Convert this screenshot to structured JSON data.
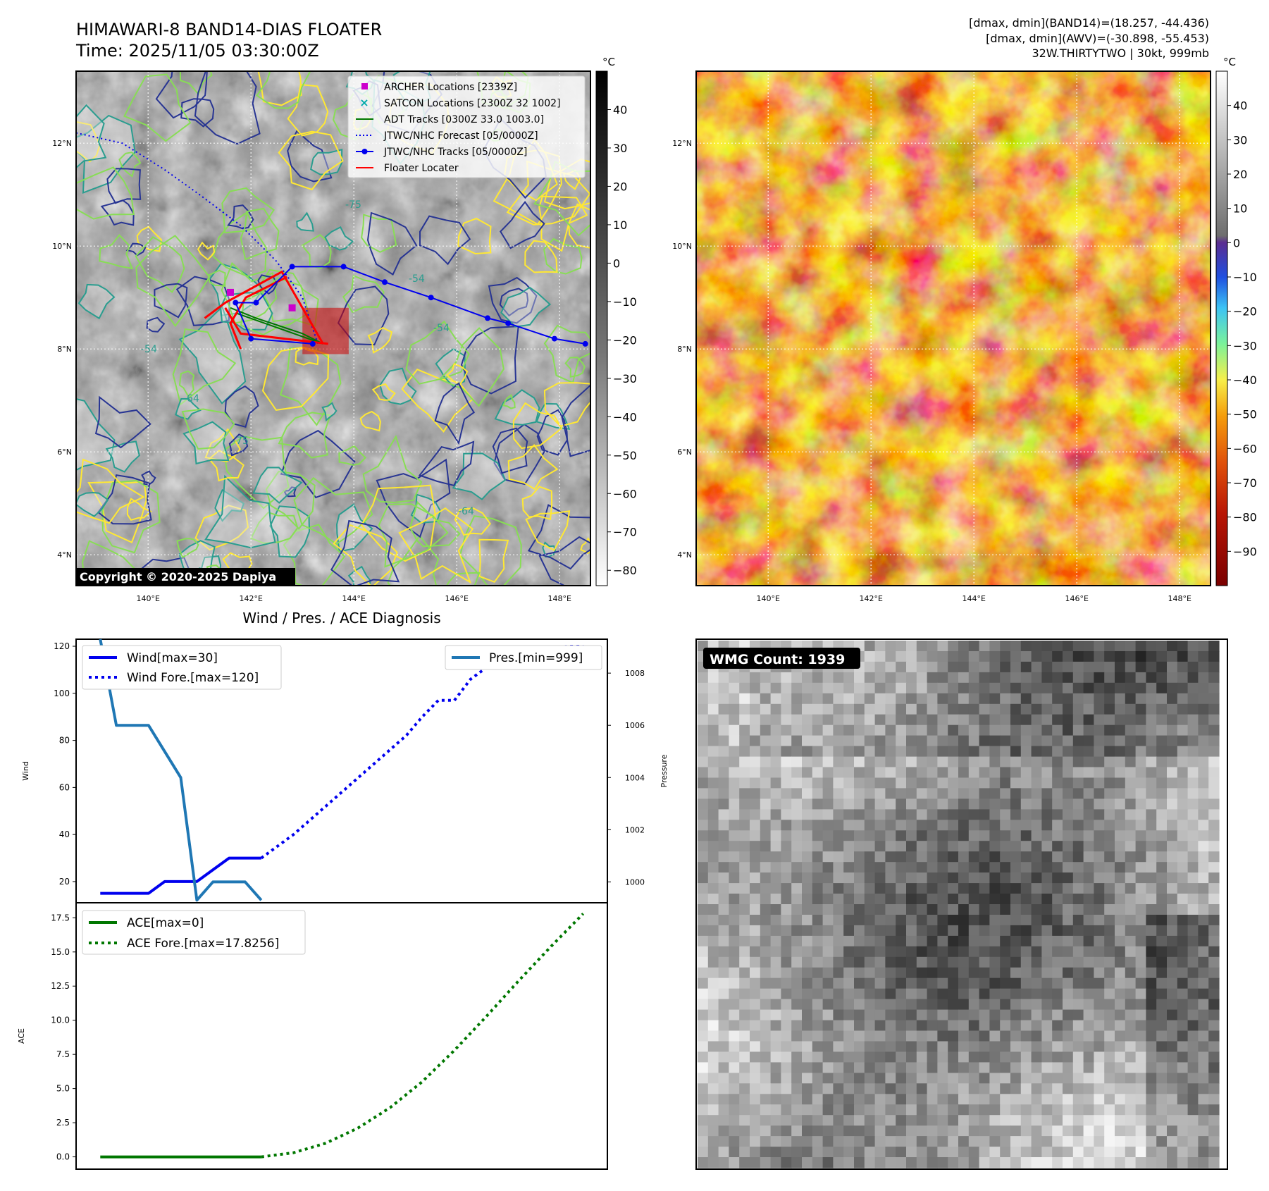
{
  "header": {
    "title": "HIMAWARI-8 BAND14-DIAS FLOATER",
    "time": "Time: 2025/11/05 03:30:00Z",
    "stats_band14": "[dmax, dmin](BAND14)=(18.257, -44.436)",
    "stats_awv": "[dmax, dmin](AWV)=(-30.898, -55.453)",
    "storm": "32W.THIRTYTWO | 30kt, 999mb"
  },
  "map": {
    "lat_labels": [
      "12°N",
      "10°N",
      "8°N",
      "6°N",
      "4°N"
    ],
    "lat_values": [
      12,
      10,
      8,
      6,
      4
    ],
    "lon_labels": [
      "140°E",
      "142°E",
      "144°E",
      "146°E",
      "148°E"
    ],
    "lon_values": [
      140,
      142,
      144,
      146,
      148
    ],
    "lon_range": [
      138.6,
      148.6
    ],
    "lat_range": [
      3.4,
      13.4
    ],
    "copyright": "Copyright © 2020-2025 Dapiya",
    "contour_labels": [
      "-54",
      "-64",
      "-75"
    ],
    "colors": {
      "archer": "#cc00cc",
      "satcon": "#00aaaa",
      "adt": "#007700",
      "jtwc": "#0000ee",
      "floater": "#ff0000",
      "contour_yellow": "#ffe833",
      "contour_lightgreen": "#88dd55",
      "contour_teal": "#2a9d8f",
      "contour_navy": "#283593"
    },
    "legend": [
      {
        "label": "ARCHER Locations [2339Z]",
        "marker": "square",
        "color": "#cc00cc"
      },
      {
        "label": "SATCON Locations [2300Z 32 1002]",
        "marker": "x",
        "color": "#00aaaa"
      },
      {
        "label": "ADT Tracks [0300Z 33.0 1003.0]",
        "marker": "line",
        "color": "#007700"
      },
      {
        "label": "JTWC/NHC Forecast [05/0000Z]",
        "marker": "dotted",
        "color": "#0000ee"
      },
      {
        "label": "JTWC/NHC Tracks [05/0000Z]",
        "marker": "line-dot",
        "color": "#0000ee"
      },
      {
        "label": "Floater Locater",
        "marker": "line",
        "color": "#ff0000"
      }
    ],
    "jtwc_track": [
      [
        148.5,
        8.1
      ],
      [
        147.9,
        8.2
      ],
      [
        147.0,
        8.5
      ],
      [
        146.6,
        8.6
      ],
      [
        145.5,
        9.0
      ],
      [
        144.6,
        9.3
      ],
      [
        143.8,
        9.6
      ],
      [
        142.8,
        9.6
      ],
      [
        142.1,
        8.9
      ],
      [
        141.7,
        8.9
      ],
      [
        142.0,
        8.2
      ],
      [
        143.2,
        8.1
      ]
    ],
    "jtwc_forecast": [
      [
        138.6,
        12.2
      ],
      [
        139.5,
        12.0
      ],
      [
        140.3,
        11.5
      ],
      [
        141.0,
        11.0
      ],
      [
        141.8,
        10.4
      ],
      [
        142.5,
        9.7
      ],
      [
        143.0,
        9.0
      ],
      [
        143.3,
        8.1
      ]
    ],
    "adt_track": [
      [
        141.6,
        8.8
      ],
      [
        142.1,
        8.6
      ],
      [
        143.0,
        8.3
      ],
      [
        143.4,
        8.1
      ],
      [
        141.7,
        8.7
      ]
    ],
    "archer_points": [
      [
        141.6,
        9.1
      ],
      [
        142.8,
        8.8
      ]
    ],
    "floater_box": [
      143.0,
      7.9,
      143.9,
      8.8
    ],
    "floater_tracks": [
      [
        [
          143.4,
          8.1
        ],
        [
          142.6,
          9.5
        ],
        [
          141.5,
          8.9
        ],
        [
          141.1,
          8.6
        ]
      ],
      [
        [
          143.5,
          8.1
        ],
        [
          141.8,
          8.3
        ],
        [
          141.5,
          8.8
        ]
      ],
      [
        [
          141.8,
          8.0
        ],
        [
          141.6,
          8.5
        ],
        [
          141.9,
          9.0
        ],
        [
          142.7,
          9.4
        ]
      ]
    ],
    "colorbar": {
      "unit": "°C",
      "ticks": [
        "40",
        "30",
        "20",
        "10",
        "0",
        "−10",
        "−20",
        "−30",
        "−40",
        "−50",
        "−60",
        "−70",
        "−80"
      ],
      "values": [
        40,
        30,
        20,
        10,
        0,
        -10,
        -20,
        -30,
        -40,
        -50,
        -60,
        -70,
        -80
      ],
      "range": [
        -84,
        50
      ]
    }
  },
  "awv": {
    "colorbar": {
      "unit": "°C",
      "ticks": [
        "40",
        "30",
        "20",
        "10",
        "0",
        "−10",
        "−20",
        "−30",
        "−40",
        "−50",
        "−60",
        "−70",
        "−80",
        "−90"
      ],
      "values": [
        40,
        30,
        20,
        10,
        0,
        -10,
        -20,
        -30,
        -40,
        -50,
        -60,
        -70,
        -80,
        -90
      ],
      "range": [
        -100,
        50
      ]
    }
  },
  "wmg": {
    "label": "WMG Count: 1939"
  },
  "chart_data": [
    {
      "type": "line",
      "title": "Wind / Pres. / ACE Diagnosis",
      "ylabel": "Wind",
      "y2label": "Pressure",
      "ylim": [
        11,
        123
      ],
      "y2lim": [
        999.2,
        1009.3
      ],
      "yticks": [
        20,
        40,
        60,
        80,
        100,
        120
      ],
      "y2ticks": [
        1000,
        1002,
        1004,
        1006,
        1008
      ],
      "legend_left": [
        "Wind[max=30]",
        "Wind Fore.[max=120]"
      ],
      "legend_right": [
        "Pres.[min=999]"
      ],
      "series": [
        {
          "name": "Wind[max=30]",
          "axis": "left",
          "style": "solid",
          "color": "#0000ee",
          "x": [
            0,
            3,
            4,
            6,
            7,
            8,
            9,
            10
          ],
          "values": [
            15,
            15,
            20,
            20,
            25,
            30,
            30,
            30
          ]
        },
        {
          "name": "Wind Fore.[max=120]",
          "axis": "left",
          "style": "dotted",
          "color": "#0000ee",
          "x": [
            10,
            12,
            14,
            16,
            18,
            19,
            20,
            21,
            22,
            23,
            24,
            25,
            26,
            27,
            28,
            29,
            30
          ],
          "values": [
            30,
            40,
            52,
            64,
            76,
            82,
            90,
            97,
            97,
            106,
            111,
            114,
            116,
            118,
            119,
            120,
            120
          ]
        },
        {
          "name": "Pres.[min=999]",
          "axis": "right",
          "style": "solid",
          "color": "#1f77b4",
          "x": [
            0,
            1,
            3,
            5,
            6,
            7,
            8,
            9,
            10
          ],
          "values": [
            1009.3,
            1006,
            1006,
            1004,
            999.3,
            1000,
            1000,
            1000,
            999.3
          ]
        }
      ]
    },
    {
      "type": "line",
      "ylabel": "ACE",
      "ylim": [
        -0.9,
        18.6
      ],
      "yticks": [
        "0.0",
        "2.5",
        "5.0",
        "7.5",
        "10.0",
        "12.5",
        "15.0",
        "17.5"
      ],
      "ytick_values": [
        0,
        2.5,
        5,
        7.5,
        10,
        12.5,
        15,
        17.5
      ],
      "series": [
        {
          "name": "ACE[max=0]",
          "style": "solid",
          "color": "#007700",
          "x": [
            0,
            10
          ],
          "values": [
            0,
            0
          ]
        },
        {
          "name": "ACE Fore.[max=17.8256]",
          "style": "dotted",
          "color": "#007700",
          "x": [
            10,
            12,
            14,
            16,
            18,
            20,
            22,
            24,
            26,
            28,
            30
          ],
          "values": [
            0,
            0.3,
            1.0,
            2.1,
            3.6,
            5.5,
            7.8,
            10.3,
            12.9,
            15.4,
            17.8
          ]
        }
      ],
      "x_range": [
        -1.5,
        31.5
      ]
    }
  ]
}
